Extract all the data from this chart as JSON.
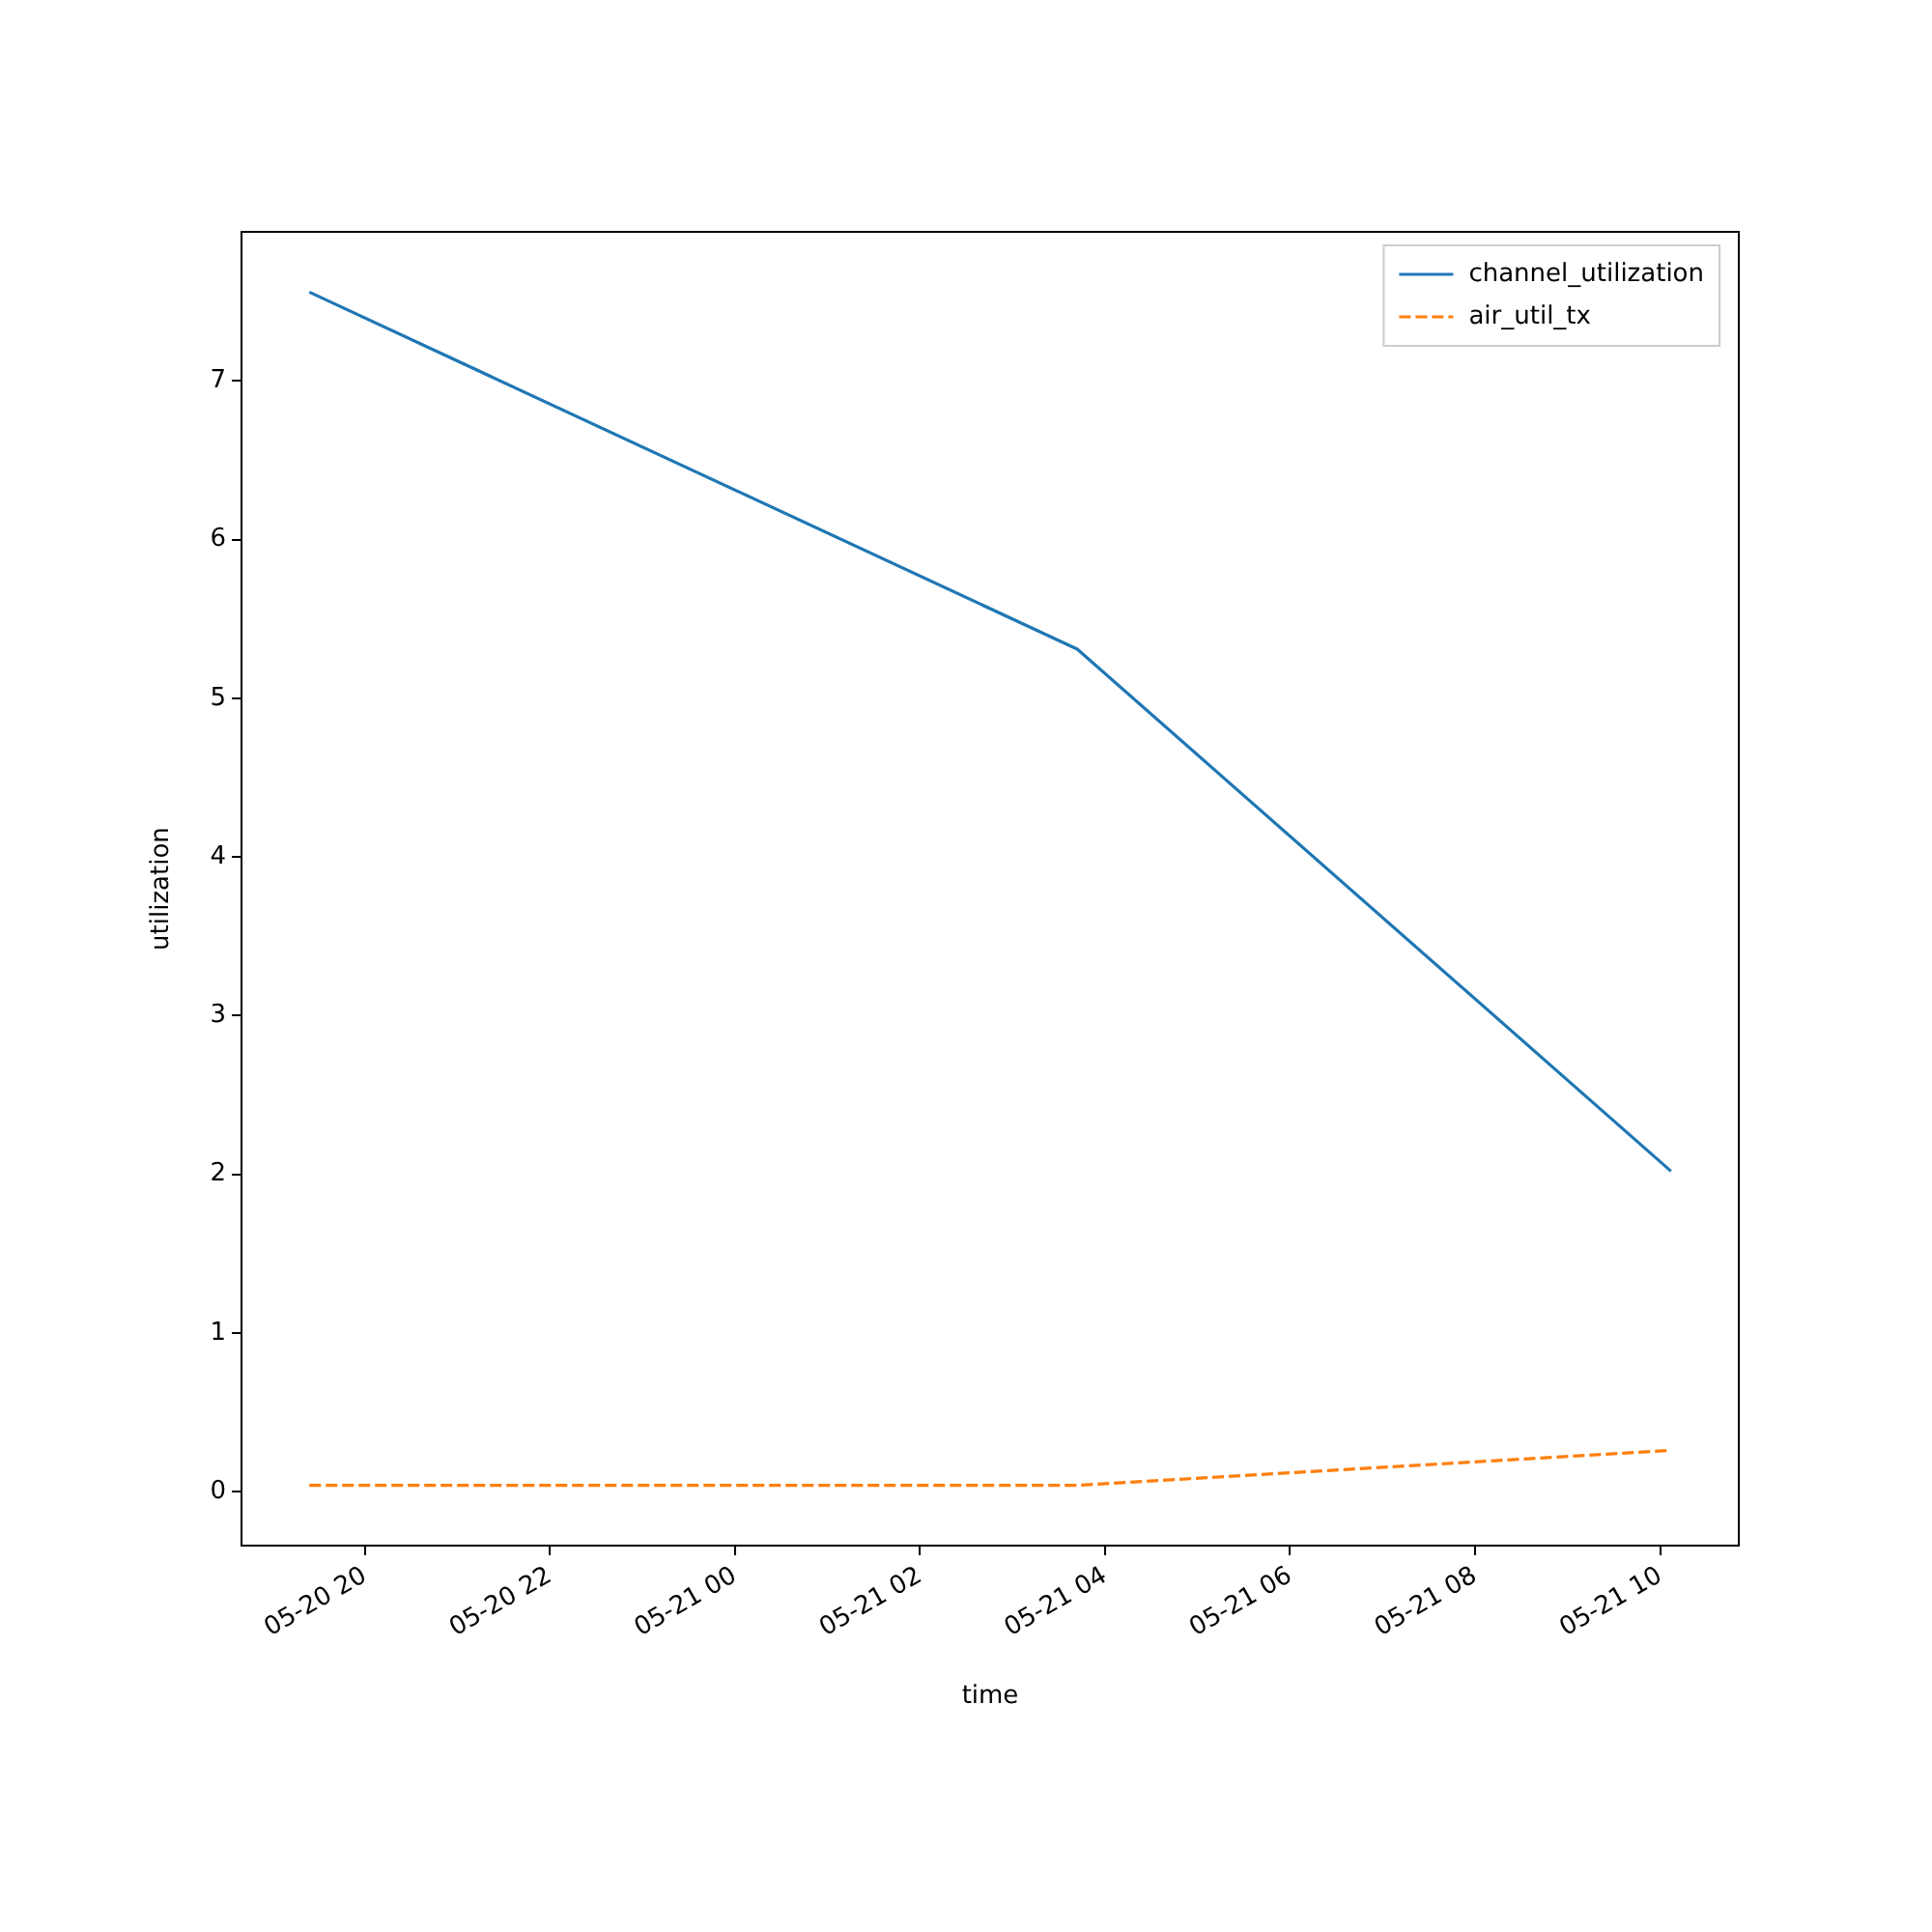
{
  "chart_data": {
    "type": "line",
    "xlabel": "time",
    "ylabel": "utilization",
    "x": [
      "--05-20T19:24",
      "--05-21T03:42",
      "--05-21T10:07"
    ],
    "series": [
      {
        "name": "channel_utilization",
        "color": "#1f77b4",
        "values": [
          7.56,
          5.31,
          2.02
        ],
        "line_style": "solid"
      },
      {
        "name": "air_util_tx",
        "color": "#ff7f0e",
        "values": [
          0.04,
          0.04,
          0.26
        ],
        "line_style": "dashed"
      }
    ],
    "xlim": [
      "--05-20T18:40",
      "--05-21T10:51"
    ],
    "xticks": [
      {
        "value": "--05-20T20:00",
        "label": "05-20 20"
      },
      {
        "value": "--05-20T22:00",
        "label": "05-20 22"
      },
      {
        "value": "--05-21T00:00",
        "label": "05-21 00"
      },
      {
        "value": "--05-21T02:00",
        "label": "05-21 02"
      },
      {
        "value": "--05-21T04:00",
        "label": "05-21 04"
      },
      {
        "value": "--05-21T06:00",
        "label": "05-21 06"
      },
      {
        "value": "--05-21T08:00",
        "label": "05-21 08"
      },
      {
        "value": "--05-21T10:00",
        "label": "05-21 10"
      }
    ],
    "ylim": [
      -0.34,
      7.94
    ],
    "yticks": [
      0,
      1,
      2,
      3,
      4,
      5,
      6,
      7
    ],
    "grid": false,
    "legend": "top right",
    "marker": "none"
  }
}
